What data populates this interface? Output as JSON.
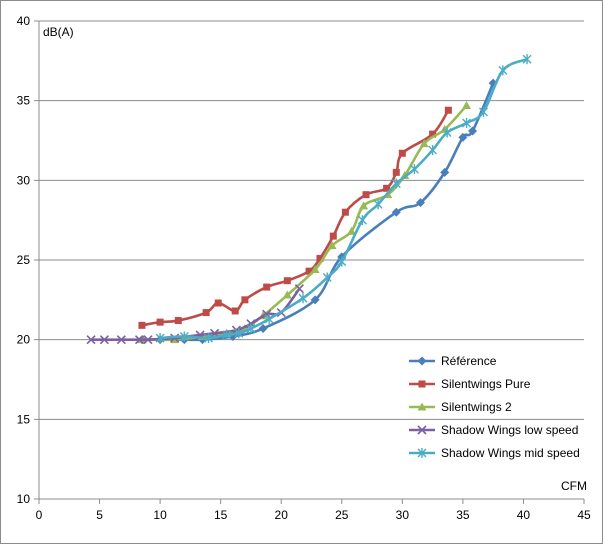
{
  "chart_data": {
    "type": "scatter",
    "title": "",
    "xlabel": "CFM",
    "ylabel": "dB(A)",
    "xlim": [
      0,
      45
    ],
    "ylim": [
      10,
      40
    ],
    "xticks": [
      0,
      5,
      10,
      15,
      20,
      25,
      30,
      35,
      40,
      45
    ],
    "yticks": [
      10,
      15,
      20,
      25,
      30,
      35,
      40
    ],
    "grid": "horizontal",
    "legend_position": "bottom-right",
    "series": [
      {
        "name": "Référence",
        "color": "#4a7ebb",
        "marker": "diamond",
        "points": [
          [
            8.5,
            20.0
          ],
          [
            10.0,
            20.0
          ],
          [
            12.0,
            20.0
          ],
          [
            13.5,
            20.0
          ],
          [
            16.0,
            20.2
          ],
          [
            18.5,
            20.7
          ],
          [
            22.8,
            22.5
          ],
          [
            25.0,
            25.2
          ],
          [
            29.5,
            28.0
          ],
          [
            31.5,
            28.6
          ],
          [
            33.5,
            30.5
          ],
          [
            35.0,
            32.7
          ],
          [
            35.8,
            33.1
          ],
          [
            37.5,
            36.1
          ]
        ]
      },
      {
        "name": "Silentwings Pure",
        "color": "#be4b48",
        "marker": "square",
        "points": [
          [
            8.5,
            20.9
          ],
          [
            10.0,
            21.1
          ],
          [
            11.5,
            21.2
          ],
          [
            13.8,
            21.7
          ],
          [
            14.8,
            22.3
          ],
          [
            16.2,
            21.8
          ],
          [
            17.0,
            22.5
          ],
          [
            18.8,
            23.3
          ],
          [
            20.5,
            23.7
          ],
          [
            22.3,
            24.3
          ],
          [
            23.2,
            25.1
          ],
          [
            24.3,
            26.5
          ],
          [
            25.3,
            28.0
          ],
          [
            27.0,
            29.1
          ],
          [
            28.7,
            29.5
          ],
          [
            29.5,
            30.5
          ],
          [
            30.0,
            31.7
          ],
          [
            32.5,
            32.9
          ],
          [
            33.8,
            34.4
          ]
        ]
      },
      {
        "name": "Silentwings 2",
        "color": "#98b954",
        "marker": "triangle",
        "points": [
          [
            8.5,
            20.0
          ],
          [
            11.2,
            20.0
          ],
          [
            13.5,
            20.2
          ],
          [
            15.5,
            20.4
          ],
          [
            17.0,
            20.7
          ],
          [
            18.5,
            21.5
          ],
          [
            20.5,
            22.8
          ],
          [
            22.8,
            24.4
          ],
          [
            24.2,
            25.9
          ],
          [
            25.8,
            26.8
          ],
          [
            26.8,
            28.4
          ],
          [
            28.8,
            29.1
          ],
          [
            30.2,
            30.3
          ],
          [
            31.8,
            32.3
          ],
          [
            33.5,
            33.2
          ],
          [
            35.3,
            34.7
          ]
        ]
      },
      {
        "name": "Shadow Wings low speed",
        "color": "#7d60a0",
        "marker": "x",
        "points": [
          [
            4.3,
            20.0
          ],
          [
            5.4,
            20.0
          ],
          [
            6.8,
            20.0
          ],
          [
            8.3,
            20.0
          ],
          [
            9.0,
            20.0
          ],
          [
            11.2,
            20.1
          ],
          [
            13.3,
            20.3
          ],
          [
            14.5,
            20.4
          ],
          [
            16.3,
            20.6
          ],
          [
            17.5,
            21.0
          ],
          [
            18.8,
            21.6
          ],
          [
            20.0,
            21.7
          ],
          [
            21.5,
            23.2
          ]
        ]
      },
      {
        "name": "Shadow Wings mid speed",
        "color": "#4bacc6",
        "marker": "star",
        "points": [
          [
            10.0,
            20.1
          ],
          [
            12.0,
            20.2
          ],
          [
            14.0,
            20.1
          ],
          [
            15.5,
            20.3
          ],
          [
            16.5,
            20.4
          ],
          [
            17.5,
            20.7
          ],
          [
            19.0,
            21.3
          ],
          [
            21.8,
            22.6
          ],
          [
            23.8,
            23.9
          ],
          [
            25.0,
            24.9
          ],
          [
            26.7,
            27.5
          ],
          [
            28.0,
            28.5
          ],
          [
            29.5,
            29.8
          ],
          [
            31.0,
            30.7
          ],
          [
            32.5,
            31.9
          ],
          [
            33.7,
            33.0
          ],
          [
            35.3,
            33.6
          ],
          [
            36.7,
            34.3
          ],
          [
            38.3,
            36.9
          ],
          [
            40.3,
            37.6
          ]
        ]
      }
    ]
  }
}
